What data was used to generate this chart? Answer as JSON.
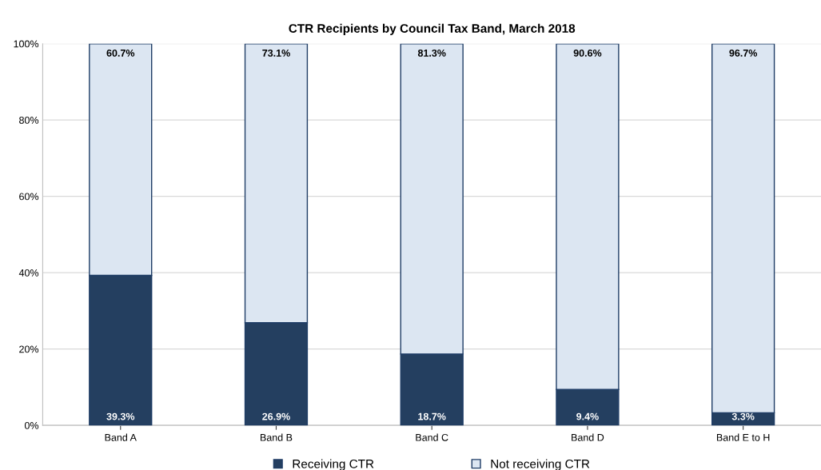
{
  "chart_data": {
    "type": "bar",
    "title": "CTR Recipients by Council Tax Band, March 2018",
    "categories": [
      "Band A",
      "Band B",
      "Band C",
      "Band D",
      "Band E to H"
    ],
    "stacked": true,
    "series": [
      {
        "name": "Receiving CTR",
        "color": "#243f60",
        "values": [
          39.3,
          26.9,
          18.7,
          9.4,
          3.3
        ],
        "value_labels": [
          "39.3%",
          "26.9%",
          "18.7%",
          "9.4%",
          "3.3%"
        ]
      },
      {
        "name": "Not receiving CTR",
        "color": "#dce6f2",
        "values": [
          60.7,
          73.1,
          81.3,
          90.6,
          96.7
        ],
        "value_labels": [
          "60.7%",
          "73.1%",
          "81.3%",
          "90.6%",
          "96.7%"
        ]
      }
    ],
    "ylim": [
      0,
      100
    ],
    "yticks": [
      {
        "value": 0,
        "label": "0%"
      },
      {
        "value": 20,
        "label": "20%"
      },
      {
        "value": 40,
        "label": "40%"
      },
      {
        "value": 60,
        "label": "60%"
      },
      {
        "value": 80,
        "label": "80%"
      },
      {
        "value": 100,
        "label": "100%"
      }
    ],
    "grid": "y",
    "legend": "bottom"
  }
}
